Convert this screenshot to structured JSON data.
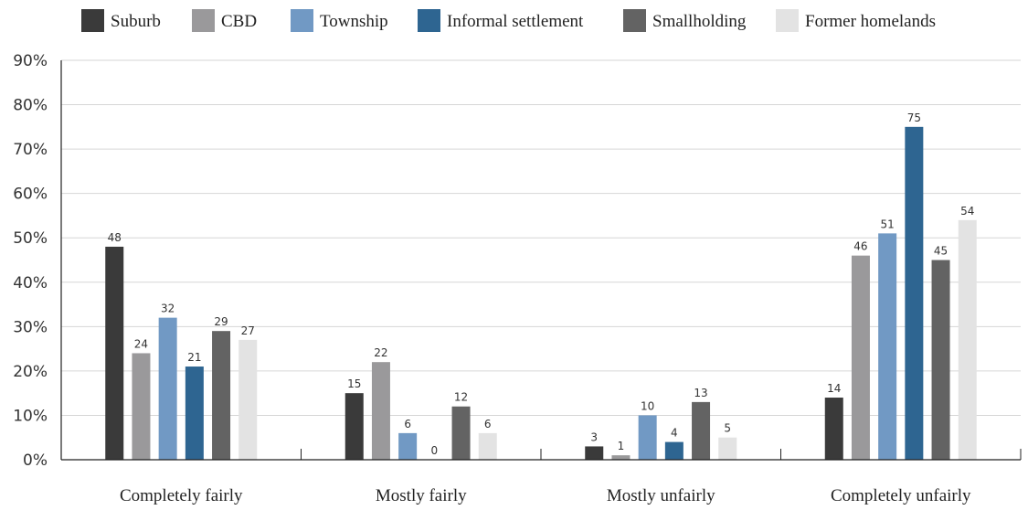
{
  "chart_data": {
    "type": "bar",
    "categories": [
      "Completely fairly",
      "Mostly fairly",
      "Mostly unfairly",
      "Completely unfairly"
    ],
    "series": [
      {
        "name": "Suburb",
        "color": "#3a3a3a",
        "values": [
          48,
          15,
          3,
          14
        ]
      },
      {
        "name": "CBD",
        "color": "#9a999b",
        "values": [
          24,
          22,
          1,
          46
        ]
      },
      {
        "name": "Township",
        "color": "#7199c4",
        "values": [
          32,
          6,
          10,
          51
        ]
      },
      {
        "name": "Informal settlement",
        "color": "#2e6591",
        "values": [
          21,
          0,
          4,
          75
        ]
      },
      {
        "name": "Smallholding",
        "color": "#636363",
        "values": [
          29,
          12,
          13,
          45
        ]
      },
      {
        "name": "Former homelands",
        "color": "#e3e3e3",
        "values": [
          27,
          6,
          5,
          54
        ]
      }
    ],
    "ylim": [
      0,
      90
    ],
    "yticks": [
      0,
      10,
      20,
      30,
      40,
      50,
      60,
      70,
      80,
      90
    ],
    "ytick_suffix": "%",
    "grid": true,
    "legend": "top"
  }
}
